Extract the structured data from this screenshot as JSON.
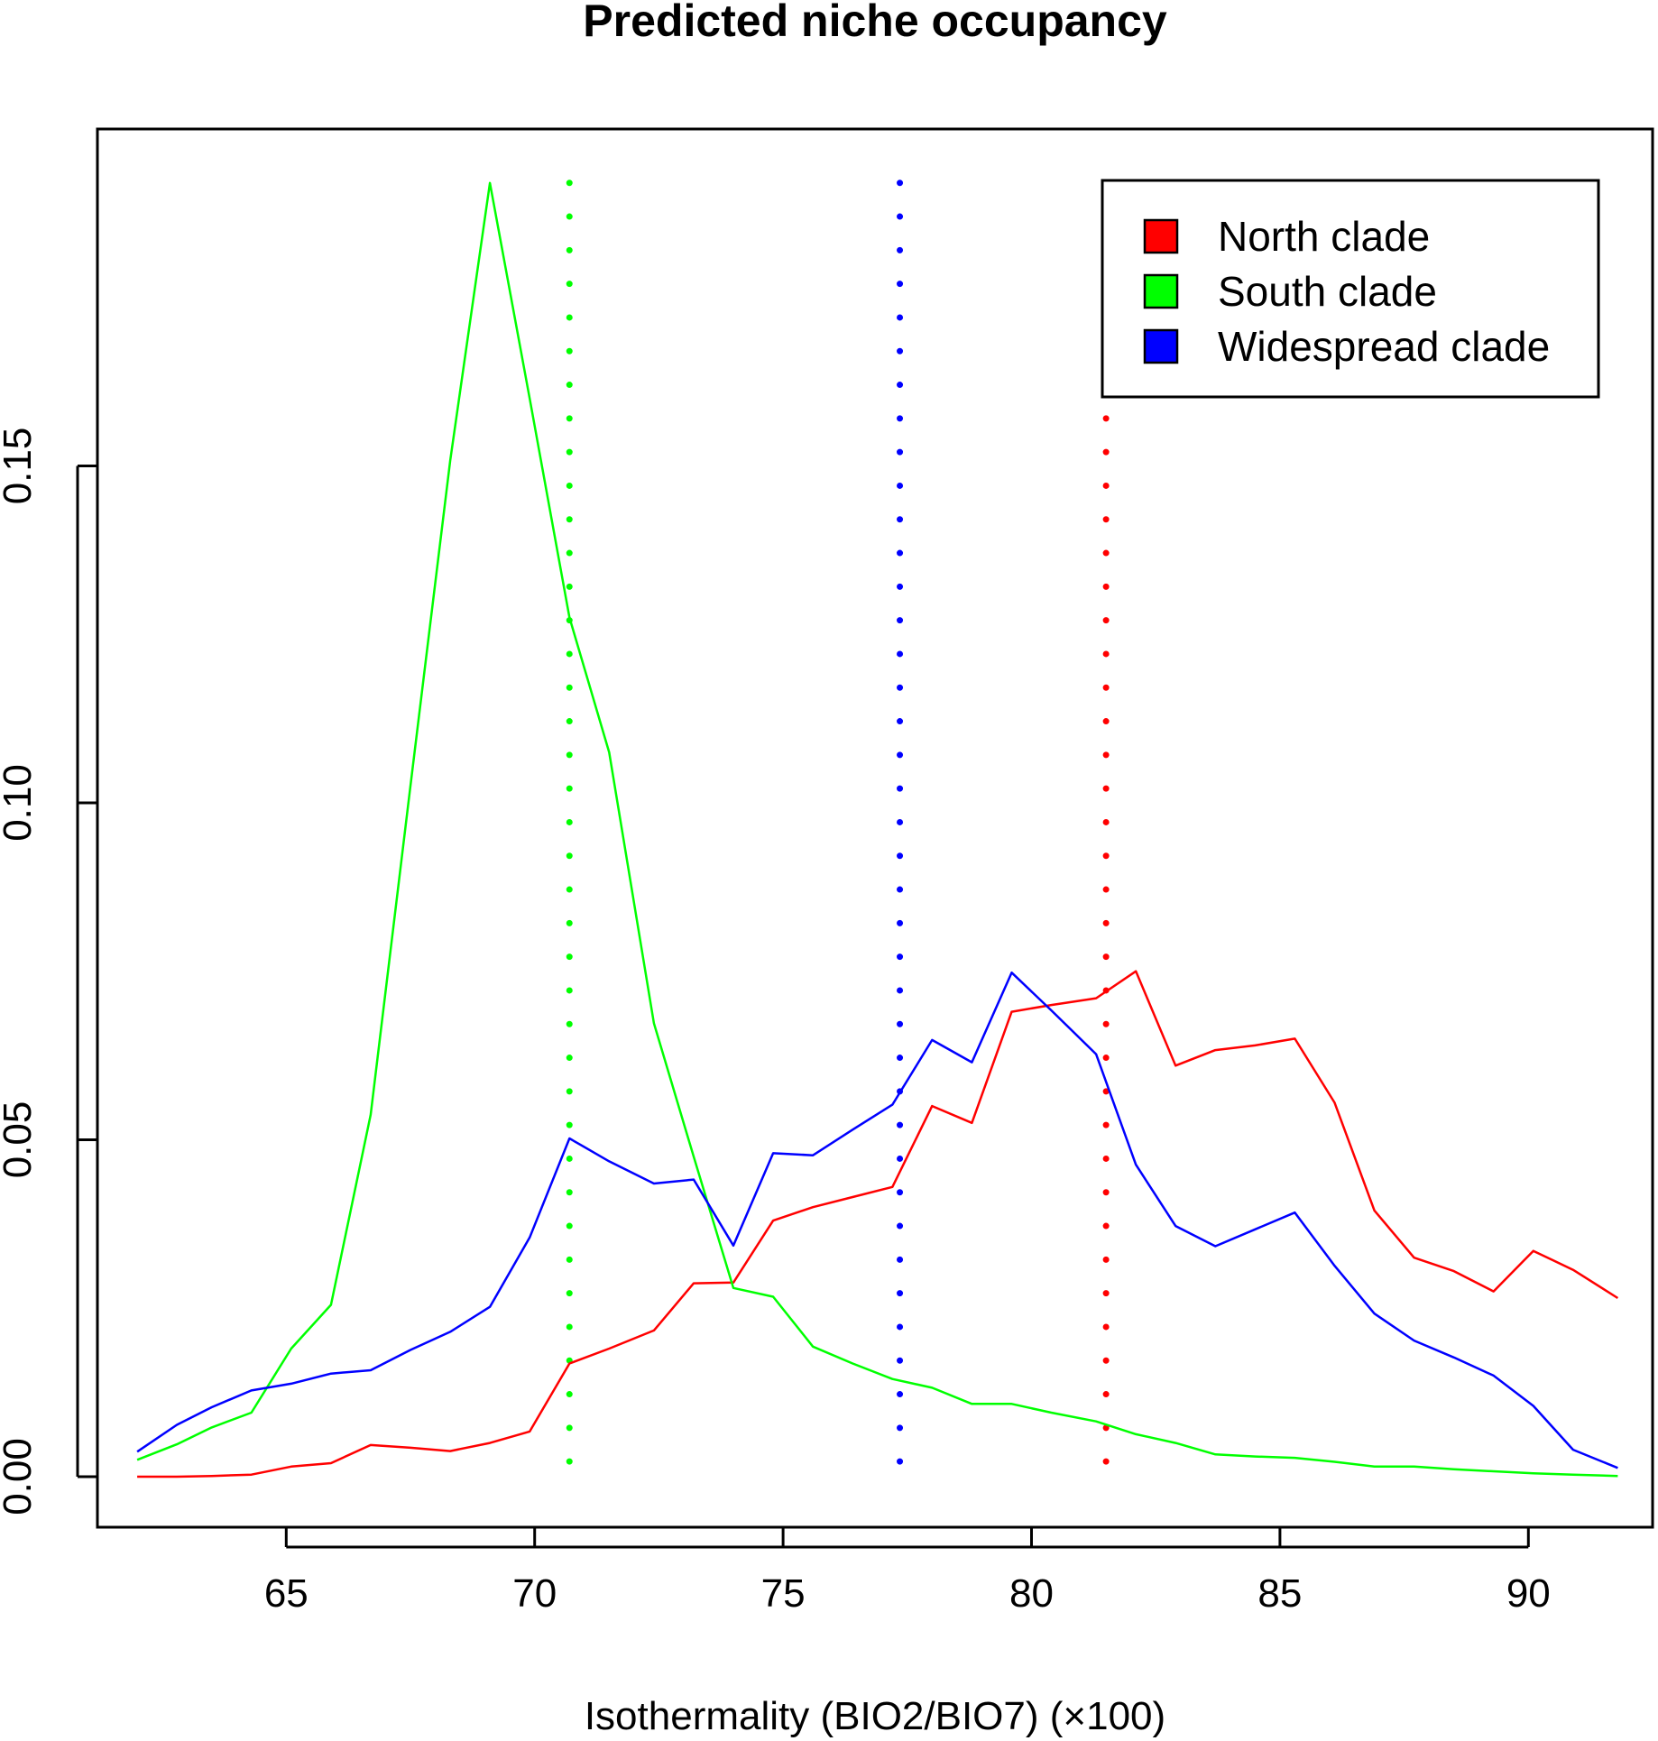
{
  "chart_data": {
    "type": "line",
    "title": "Predicted niche occupancy",
    "xlabel": "Isothermality (BIO2/BIO7) (×100)",
    "ylabel": "",
    "xlim": [
      61.2,
      92.5
    ],
    "ylim": [
      -0.0075,
      0.2
    ],
    "xticks": [
      65,
      70,
      75,
      80,
      85,
      90
    ],
    "yticks": [
      0.0,
      0.05,
      0.1,
      0.15
    ],
    "xtick_labels": [
      "65",
      "70",
      "75",
      "80",
      "85",
      "90"
    ],
    "ytick_labels": [
      "0.00",
      "0.05",
      "0.10",
      "0.15"
    ],
    "grid": false,
    "legend_position": "top-right",
    "series": [
      {
        "name": "North clade",
        "color": "#ff0000",
        "x": [
          62.0,
          62.8,
          63.5,
          64.3,
          65.1,
          65.9,
          66.7,
          67.5,
          68.3,
          69.1,
          69.9,
          70.7,
          71.5,
          72.4,
          73.2,
          74.0,
          74.8,
          75.6,
          76.4,
          77.2,
          78.0,
          78.8,
          79.6,
          80.4,
          81.3,
          82.1,
          82.9,
          83.7,
          84.5,
          85.3,
          86.1,
          86.9,
          87.7,
          88.5,
          89.3,
          90.1,
          90.9,
          91.8
        ],
        "values": [
          0.0,
          0.0,
          0.0001,
          0.0003,
          0.0015,
          0.002,
          0.0047,
          0.0043,
          0.0038,
          0.005,
          0.0067,
          0.0168,
          0.019,
          0.0217,
          0.0287,
          0.0288,
          0.038,
          0.04,
          0.0415,
          0.043,
          0.055,
          0.0525,
          0.069,
          0.07,
          0.071,
          0.075,
          0.061,
          0.0633,
          0.064,
          0.065,
          0.0555,
          0.0395,
          0.0325,
          0.0305,
          0.0275,
          0.0335,
          0.0307,
          0.0265
        ]
      },
      {
        "name": "South clade",
        "color": "#00ff00",
        "x": [
          62.0,
          62.8,
          63.5,
          64.3,
          65.1,
          65.9,
          66.7,
          67.5,
          68.3,
          69.1,
          69.9,
          70.7,
          71.5,
          72.4,
          73.2,
          74.0,
          74.8,
          75.6,
          76.4,
          77.2,
          78.0,
          78.8,
          79.6,
          80.4,
          81.3,
          82.1,
          82.9,
          83.7,
          84.5,
          85.3,
          86.1,
          86.9,
          87.7,
          88.5,
          89.3,
          90.1,
          90.9,
          91.8
        ],
        "values": [
          0.0025,
          0.0048,
          0.0073,
          0.0095,
          0.019,
          0.0255,
          0.0537,
          0.1025,
          0.1508,
          0.192,
          0.16,
          0.1275,
          0.1075,
          0.0673,
          0.0475,
          0.028,
          0.0267,
          0.0193,
          0.0168,
          0.0145,
          0.0132,
          0.0108,
          0.0108,
          0.0095,
          0.0082,
          0.0063,
          0.005,
          0.0033,
          0.003,
          0.0028,
          0.0022,
          0.0015,
          0.0015,
          0.0011,
          0.0008,
          0.0005,
          0.0003,
          0.0001
        ]
      },
      {
        "name": "Widespread clade",
        "color": "#0000ff",
        "x": [
          62.0,
          62.8,
          63.5,
          64.3,
          65.1,
          65.9,
          66.7,
          67.5,
          68.3,
          69.1,
          69.9,
          70.7,
          71.5,
          72.4,
          73.2,
          74.0,
          74.8,
          75.6,
          76.4,
          77.2,
          78.0,
          78.8,
          79.6,
          80.4,
          81.3,
          82.1,
          82.9,
          83.7,
          84.5,
          85.3,
          86.1,
          86.9,
          87.7,
          88.5,
          89.3,
          90.1,
          90.9,
          91.8
        ],
        "values": [
          0.0037,
          0.0077,
          0.0103,
          0.0128,
          0.0138,
          0.0153,
          0.0158,
          0.0188,
          0.0215,
          0.0252,
          0.0355,
          0.0502,
          0.0468,
          0.0435,
          0.0441,
          0.0343,
          0.048,
          0.0477,
          0.0515,
          0.0552,
          0.0648,
          0.0615,
          0.0748,
          0.0692,
          0.0627,
          0.0463,
          0.0372,
          0.0342,
          0.0367,
          0.0392,
          0.0313,
          0.0242,
          0.0202,
          0.0177,
          0.015,
          0.0105,
          0.004,
          0.0013
        ]
      }
    ],
    "vertical_lines": [
      {
        "series": "South clade",
        "x": 70.7,
        "color": "#00ff00",
        "style": "dotted"
      },
      {
        "series": "Widespread clade",
        "x": 77.35,
        "color": "#0000ff",
        "style": "dotted"
      },
      {
        "series": "North clade",
        "x": 81.5,
        "color": "#ff0000",
        "style": "dotted"
      }
    ]
  }
}
